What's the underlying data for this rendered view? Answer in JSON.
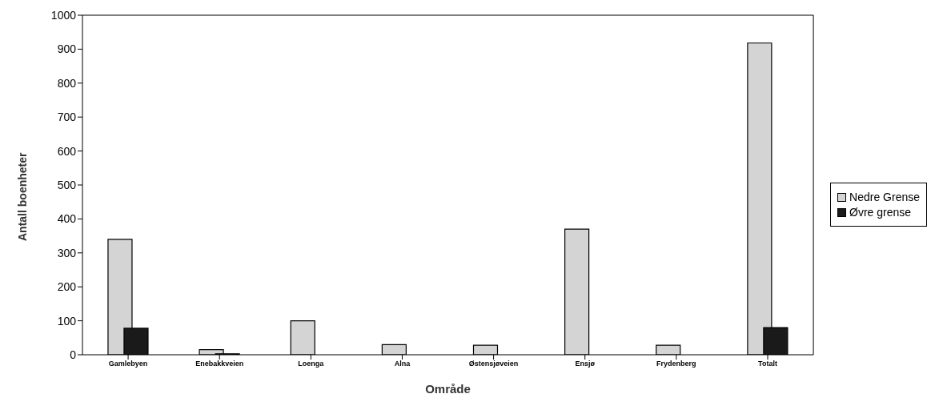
{
  "chart_data": {
    "type": "bar",
    "xlabel": "Område",
    "ylabel": "Antall boenheter",
    "categories": [
      "Gamlebyen",
      "Enebakkveien",
      "Loenga",
      "Alna",
      "Østensjøveien",
      "Ensjø",
      "Frydenberg",
      "Totalt"
    ],
    "series": [
      {
        "name": "Nedre Grense",
        "color": "#d4d4d4",
        "values": [
          340,
          15,
          100,
          30,
          28,
          370,
          28,
          918
        ]
      },
      {
        "name": "Øvre grense",
        "color": "#1a1a1a",
        "values": [
          78,
          3,
          null,
          null,
          null,
          null,
          null,
          80
        ]
      }
    ],
    "ylim": [
      0,
      1000
    ],
    "yticks": [
      0,
      100,
      200,
      300,
      400,
      500,
      600,
      700,
      800,
      900,
      1000
    ],
    "legend": "right"
  }
}
